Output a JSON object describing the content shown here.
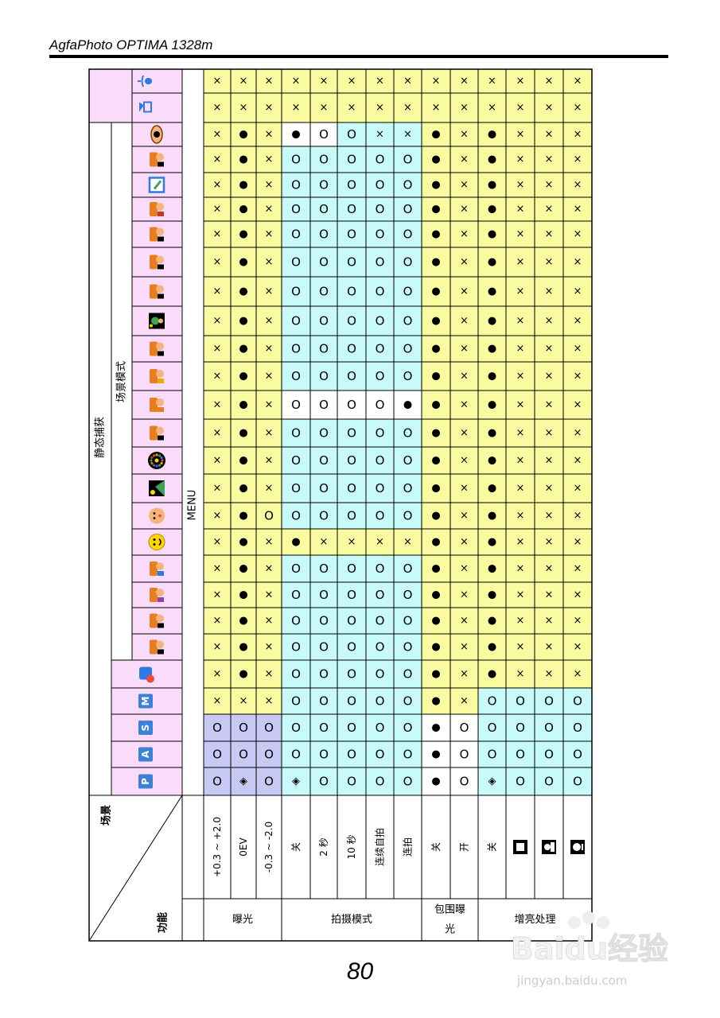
{
  "document": {
    "header_title": "AgfaPhoto OPTIMA 1328m",
    "page_number": "80",
    "corner_scene_label": "场景",
    "corner_function_label": "功能",
    "menu_label": "MENU",
    "still_capture_label": "静态捕获",
    "scene_mode_label": "场景模式"
  },
  "watermark": {
    "brand": "Baidu经验",
    "url": "jingyan.baidu.com"
  },
  "colors": {
    "yellow": "#fafaa0",
    "cyan": "#c8fafa",
    "lavender": "#c8c8f5",
    "pink": "#fadcfa",
    "white": "#ffffff",
    "icon_blue": "#3b82d6"
  },
  "columns": [
    {
      "id": "P",
      "letter": "P",
      "icon": "mode-p-icon",
      "group": "pasm"
    },
    {
      "id": "A",
      "letter": "A",
      "icon": "mode-a-icon",
      "group": "pasm"
    },
    {
      "id": "S",
      "letter": "S",
      "icon": "mode-s-icon",
      "group": "pasm"
    },
    {
      "id": "M",
      "letter": "M",
      "icon": "mode-m-icon",
      "group": "pasm"
    },
    {
      "id": "smile-dialog",
      "icon": "smile-dialog-icon",
      "group": "special"
    },
    {
      "id": "portrait",
      "icon": "portrait-icon",
      "group": "scene"
    },
    {
      "id": "landscape",
      "icon": "landscape-icon",
      "group": "scene"
    },
    {
      "id": "sunset",
      "icon": "sunset-icon",
      "group": "scene"
    },
    {
      "id": "backlight",
      "icon": "backlight-icon",
      "group": "scene"
    },
    {
      "id": "smile",
      "icon": "smile-icon",
      "group": "scene"
    },
    {
      "id": "child",
      "icon": "child-face-icon",
      "group": "scene"
    },
    {
      "id": "night-scene",
      "icon": "night-scene-icon",
      "group": "scene"
    },
    {
      "id": "fireworks",
      "icon": "fireworks-icon",
      "group": "scene"
    },
    {
      "id": "snow",
      "icon": "snow-icon",
      "group": "scene"
    },
    {
      "id": "sports",
      "icon": "sports-icon",
      "group": "scene"
    },
    {
      "id": "party",
      "icon": "party-icon",
      "group": "scene"
    },
    {
      "id": "candlelight",
      "icon": "candlelight-icon",
      "group": "scene"
    },
    {
      "id": "night-portrait",
      "icon": "night-portrait-icon",
      "group": "scene"
    },
    {
      "id": "soft-skin",
      "icon": "soft-skin-icon",
      "group": "scene"
    },
    {
      "id": "text",
      "icon": "text-document-icon",
      "group": "scene"
    },
    {
      "id": "food",
      "icon": "food-icon",
      "group": "scene"
    },
    {
      "id": "building",
      "icon": "building-icon",
      "group": "scene"
    },
    {
      "id": "frame",
      "icon": "frame-icon",
      "group": "scene"
    },
    {
      "id": "id-photo",
      "icon": "id-photo-icon",
      "group": "scene"
    },
    {
      "id": "eye",
      "icon": "eye-icon",
      "group": "scene"
    },
    {
      "id": "movie",
      "icon": "movie-camera-icon",
      "group": "video"
    },
    {
      "id": "voice",
      "icon": "microphone-icon",
      "group": "voice"
    }
  ],
  "groups": [
    {
      "label": "曝光",
      "rows": [
        "+0.3 ~ +2.0",
        "0EV",
        "-0.3 ~ -2.0"
      ]
    },
    {
      "label": "拍摄模式",
      "rows": [
        "关",
        "2 秒",
        "10 秒",
        "连续自拍",
        "连拍"
      ]
    },
    {
      "label": "包围曝光",
      "rows": [
        "关",
        "开"
      ]
    },
    {
      "label": "增亮处理",
      "rows": [
        "关",
        "icon:square-outline-icon",
        "icon:person-silhouette-icon",
        "icon:face-outline-icon"
      ]
    }
  ],
  "matrix": [
    [
      "O",
      "O",
      "O",
      "×",
      "×",
      "×",
      "×",
      "×",
      "×",
      "×",
      "×",
      "×",
      "×",
      "×",
      "×",
      "×",
      "×",
      "×",
      "×",
      "×",
      "×",
      "×",
      "×",
      "×",
      "×",
      "×",
      "×"
    ],
    [
      "◈",
      "O",
      "O",
      "×",
      "●",
      "●",
      "●",
      "●",
      "●",
      "●",
      "●",
      "●",
      "●",
      "●",
      "●",
      "●",
      "●",
      "●",
      "●",
      "●",
      "●",
      "●",
      "●",
      "●",
      "●",
      "×",
      "×"
    ],
    [
      "O",
      "O",
      "O",
      "×",
      "×",
      "×",
      "×",
      "×",
      "×",
      "×",
      "O",
      "×",
      "×",
      "×",
      "×",
      "×",
      "×",
      "×",
      "×",
      "×",
      "×",
      "×",
      "×",
      "×",
      "×",
      "×",
      "×"
    ],
    [
      "◈",
      "O",
      "O",
      "O",
      "O",
      "O",
      "O",
      "O",
      "O",
      "●",
      "O",
      "O",
      "O",
      "O",
      "O",
      "O",
      "O",
      "O",
      "O",
      "O",
      "O",
      "O",
      "O",
      "O",
      "●",
      "×",
      "×"
    ],
    [
      "O",
      "O",
      "O",
      "O",
      "O",
      "O",
      "O",
      "O",
      "O",
      "×",
      "O",
      "O",
      "O",
      "O",
      "O",
      "O",
      "O",
      "O",
      "O",
      "O",
      "O",
      "O",
      "O",
      "O",
      "O",
      "×",
      "×"
    ],
    [
      "O",
      "O",
      "O",
      "O",
      "O",
      "O",
      "O",
      "O",
      "O",
      "×",
      "O",
      "O",
      "O",
      "O",
      "O",
      "O",
      "O",
      "O",
      "O",
      "O",
      "O",
      "O",
      "O",
      "O",
      "O",
      "×",
      "×"
    ],
    [
      "O",
      "O",
      "O",
      "O",
      "O",
      "O",
      "O",
      "O",
      "O",
      "×",
      "O",
      "O",
      "O",
      "O",
      "O",
      "O",
      "O",
      "O",
      "O",
      "O",
      "O",
      "O",
      "O",
      "O",
      "×",
      "×",
      "×"
    ],
    [
      "O",
      "O",
      "O",
      "O",
      "O",
      "O",
      "O",
      "O",
      "O",
      "×",
      "O",
      "O",
      "O",
      "O",
      "●",
      "O",
      "O",
      "O",
      "O",
      "O",
      "O",
      "O",
      "O",
      "O",
      "×",
      "×",
      "×"
    ],
    [
      "●",
      "●",
      "●",
      "●",
      "●",
      "●",
      "●",
      "●",
      "●",
      "●",
      "●",
      "●",
      "●",
      "●",
      "●",
      "●",
      "●",
      "●",
      "●",
      "●",
      "●",
      "●",
      "●",
      "●",
      "●",
      "×",
      "×"
    ],
    [
      "O",
      "O",
      "O",
      "×",
      "×",
      "×",
      "×",
      "×",
      "×",
      "×",
      "×",
      "×",
      "×",
      "×",
      "×",
      "×",
      "×",
      "×",
      "×",
      "×",
      "×",
      "×",
      "×",
      "×",
      "×",
      "×",
      "×"
    ],
    [
      "◈",
      "O",
      "O",
      "O",
      "●",
      "●",
      "●",
      "●",
      "●",
      "●",
      "●",
      "●",
      "●",
      "●",
      "●",
      "●",
      "●",
      "●",
      "●",
      "●",
      "●",
      "●",
      "●",
      "●",
      "●",
      "×",
      "×"
    ],
    [
      "O",
      "O",
      "O",
      "O",
      "×",
      "×",
      "×",
      "×",
      "×",
      "×",
      "×",
      "×",
      "×",
      "×",
      "×",
      "×",
      "×",
      "×",
      "×",
      "×",
      "×",
      "×",
      "×",
      "×",
      "×",
      "×",
      "×"
    ],
    [
      "O",
      "O",
      "O",
      "O",
      "×",
      "×",
      "×",
      "×",
      "×",
      "×",
      "×",
      "×",
      "×",
      "×",
      "×",
      "×",
      "×",
      "×",
      "×",
      "×",
      "×",
      "×",
      "×",
      "×",
      "×",
      "×",
      "×"
    ],
    [
      "O",
      "O",
      "O",
      "O",
      "×",
      "×",
      "×",
      "×",
      "×",
      "×",
      "×",
      "×",
      "×",
      "×",
      "×",
      "×",
      "×",
      "×",
      "×",
      "×",
      "×",
      "×",
      "×",
      "×",
      "×",
      "×",
      "×"
    ]
  ],
  "fills": [
    [
      "L",
      "L",
      "L",
      "Y",
      "Y",
      "Y",
      "Y",
      "Y",
      "Y",
      "Y",
      "Y",
      "Y",
      "Y",
      "Y",
      "Y",
      "Y",
      "Y",
      "Y",
      "Y",
      "Y",
      "Y",
      "Y",
      "Y",
      "Y",
      "Y",
      "Y",
      "Y"
    ],
    [
      "L",
      "L",
      "L",
      "Y",
      "Y",
      "Y",
      "Y",
      "Y",
      "Y",
      "Y",
      "Y",
      "Y",
      "Y",
      "Y",
      "Y",
      "Y",
      "Y",
      "Y",
      "Y",
      "Y",
      "Y",
      "Y",
      "Y",
      "Y",
      "Y",
      "Y",
      "Y"
    ],
    [
      "L",
      "L",
      "L",
      "Y",
      "Y",
      "Y",
      "Y",
      "Y",
      "Y",
      "Y",
      "Y",
      "Y",
      "Y",
      "Y",
      "Y",
      "Y",
      "Y",
      "Y",
      "Y",
      "Y",
      "Y",
      "Y",
      "Y",
      "Y",
      "Y",
      "Y",
      "Y"
    ],
    [
      "C",
      "C",
      "C",
      "C",
      "C",
      "C",
      "C",
      "C",
      "C",
      "Y",
      "C",
      "C",
      "C",
      "C",
      "W",
      "C",
      "C",
      "C",
      "C",
      "C",
      "C",
      "C",
      "C",
      "C",
      "W",
      "Y",
      "Y"
    ],
    [
      "C",
      "C",
      "C",
      "C",
      "C",
      "C",
      "C",
      "C",
      "C",
      "Y",
      "C",
      "C",
      "C",
      "C",
      "W",
      "C",
      "C",
      "C",
      "C",
      "C",
      "C",
      "C",
      "C",
      "C",
      "W",
      "Y",
      "Y"
    ],
    [
      "C",
      "C",
      "C",
      "C",
      "C",
      "C",
      "C",
      "C",
      "C",
      "Y",
      "C",
      "C",
      "C",
      "C",
      "W",
      "C",
      "C",
      "C",
      "C",
      "C",
      "C",
      "C",
      "C",
      "C",
      "C",
      "Y",
      "Y"
    ],
    [
      "C",
      "C",
      "C",
      "C",
      "C",
      "C",
      "C",
      "C",
      "C",
      "Y",
      "C",
      "C",
      "C",
      "C",
      "W",
      "C",
      "C",
      "C",
      "C",
      "C",
      "C",
      "C",
      "C",
      "C",
      "C",
      "Y",
      "Y"
    ],
    [
      "C",
      "C",
      "C",
      "C",
      "C",
      "C",
      "C",
      "C",
      "C",
      "Y",
      "C",
      "C",
      "C",
      "C",
      "W",
      "C",
      "C",
      "C",
      "C",
      "C",
      "C",
      "C",
      "C",
      "C",
      "C",
      "Y",
      "Y"
    ],
    [
      "W",
      "W",
      "W",
      "Y",
      "Y",
      "Y",
      "Y",
      "Y",
      "Y",
      "Y",
      "Y",
      "Y",
      "Y",
      "Y",
      "Y",
      "Y",
      "Y",
      "Y",
      "Y",
      "Y",
      "Y",
      "Y",
      "Y",
      "Y",
      "Y",
      "Y",
      "Y"
    ],
    [
      "W",
      "W",
      "W",
      "Y",
      "Y",
      "Y",
      "Y",
      "Y",
      "Y",
      "Y",
      "Y",
      "Y",
      "Y",
      "Y",
      "Y",
      "Y",
      "Y",
      "Y",
      "Y",
      "Y",
      "Y",
      "Y",
      "Y",
      "Y",
      "Y",
      "Y",
      "Y"
    ],
    [
      "C",
      "C",
      "C",
      "C",
      "Y",
      "Y",
      "Y",
      "Y",
      "Y",
      "Y",
      "Y",
      "Y",
      "Y",
      "Y",
      "Y",
      "Y",
      "Y",
      "Y",
      "Y",
      "Y",
      "Y",
      "Y",
      "Y",
      "Y",
      "Y",
      "Y",
      "Y"
    ],
    [
      "C",
      "C",
      "C",
      "C",
      "Y",
      "Y",
      "Y",
      "Y",
      "Y",
      "Y",
      "Y",
      "Y",
      "Y",
      "Y",
      "Y",
      "Y",
      "Y",
      "Y",
      "Y",
      "Y",
      "Y",
      "Y",
      "Y",
      "Y",
      "Y",
      "Y",
      "Y"
    ],
    [
      "C",
      "C",
      "C",
      "C",
      "Y",
      "Y",
      "Y",
      "Y",
      "Y",
      "Y",
      "Y",
      "Y",
      "Y",
      "Y",
      "Y",
      "Y",
      "Y",
      "Y",
      "Y",
      "Y",
      "Y",
      "Y",
      "Y",
      "Y",
      "Y",
      "Y",
      "Y"
    ],
    [
      "C",
      "C",
      "C",
      "C",
      "Y",
      "Y",
      "Y",
      "Y",
      "Y",
      "Y",
      "Y",
      "Y",
      "Y",
      "Y",
      "Y",
      "Y",
      "Y",
      "Y",
      "Y",
      "Y",
      "Y",
      "Y",
      "Y",
      "Y",
      "Y",
      "Y",
      "Y"
    ]
  ]
}
